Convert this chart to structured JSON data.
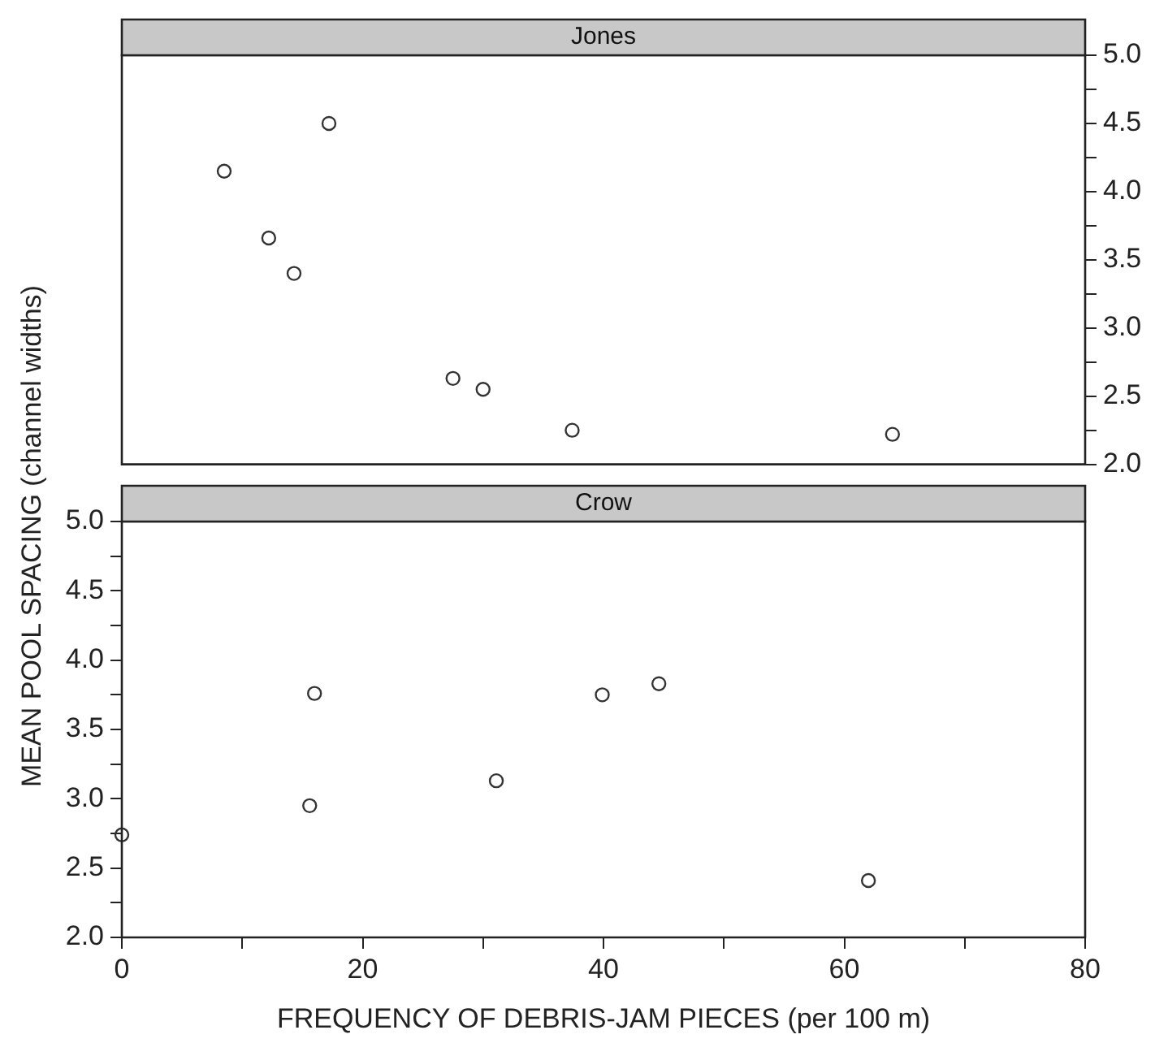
{
  "chart_data": [
    {
      "type": "scatter",
      "title": "Jones",
      "x": [
        8.5,
        17.2,
        12.2,
        14.3,
        27.5,
        30.0,
        37.4,
        64.0
      ],
      "values": [
        4.15,
        4.5,
        3.66,
        3.4,
        2.63,
        2.55,
        2.25,
        2.22
      ],
      "color": "#333333",
      "marker": "circle",
      "xlim": [
        0,
        80
      ],
      "ylim": [
        2,
        5
      ],
      "yticks": [
        {
          "value": 2,
          "label": "2.0"
        },
        {
          "value": 2.25,
          "label": null
        },
        2.5,
        {
          "value": 2.75,
          "label": null
        },
        {
          "value": 3,
          "label": "3.0"
        },
        {
          "value": 3.25,
          "label": null
        },
        3.5,
        {
          "value": 3.75,
          "label": null
        },
        {
          "value": 4,
          "label": "4.0"
        },
        {
          "value": 4.25,
          "label": null
        },
        4.5,
        {
          "value": 4.75,
          "label": null
        },
        {
          "value": 5,
          "label": "5.0"
        }
      ],
      "tick_labels": "y",
      "grid": false,
      "legend": false
    },
    {
      "type": "scatter",
      "title": "Crow",
      "xlabel": "FREQUENCY OF DEBRIS-JAM PIECES (per 100 m)",
      "ylabel": "MEAN POOL SPACING (channel widths)",
      "x": [
        0,
        16.0,
        15.6,
        31.1,
        39.9,
        44.6,
        62.0
      ],
      "values": [
        2.74,
        3.76,
        2.95,
        3.13,
        3.75,
        3.83,
        2.41
      ],
      "color": "#333333",
      "marker": "circle",
      "xlim": [
        0,
        80
      ],
      "xticks": [
        0,
        {
          "value": 10,
          "label": null
        },
        20,
        {
          "value": 30,
          "label": null
        },
        40,
        {
          "value": 50,
          "label": null
        },
        60,
        {
          "value": 70,
          "label": null
        },
        80
      ],
      "ylim": [
        2,
        5
      ],
      "yticks": [
        {
          "value": 2,
          "label": "2.0"
        },
        {
          "value": 2.25,
          "label": null
        },
        2.5,
        {
          "value": 2.75,
          "label": null
        },
        {
          "value": 3,
          "label": "3.0"
        },
        {
          "value": 3.25,
          "label": null
        },
        3.5,
        {
          "value": 3.75,
          "label": null
        },
        {
          "value": 4,
          "label": "4.0"
        },
        {
          "value": 4.25,
          "label": null
        },
        4.5,
        {
          "value": 4.75,
          "label": null
        },
        {
          "value": 5,
          "label": "5.0"
        }
      ],
      "grid": false,
      "legend": false
    }
  ]
}
